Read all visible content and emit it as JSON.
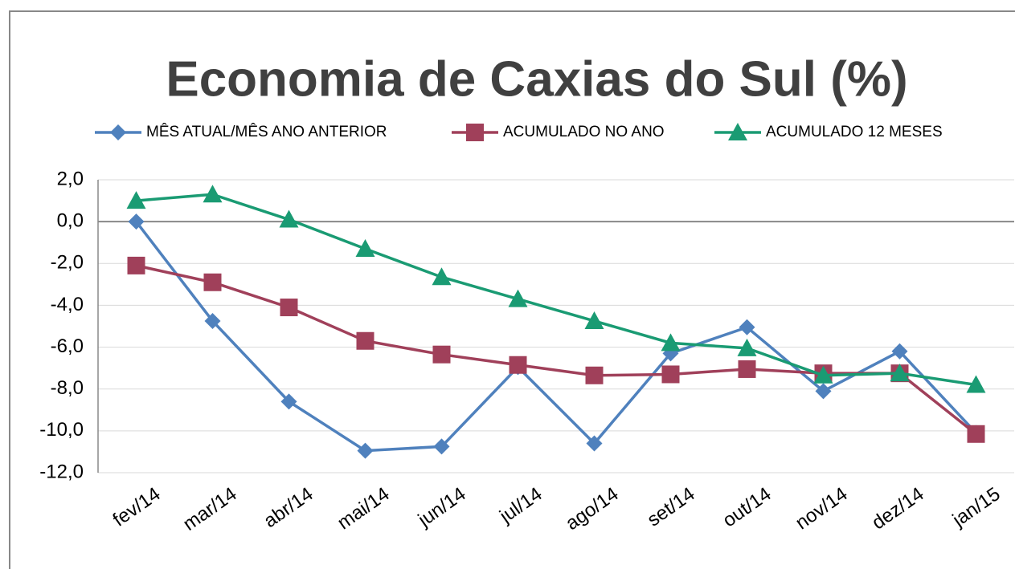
{
  "chart_data": {
    "type": "line",
    "title": "Economia de Caxias do Sul (%)",
    "categories": [
      "fev/14",
      "mar/14",
      "abr/14",
      "mai/14",
      "jun/14",
      "jul/14",
      "ago/14",
      "set/14",
      "out/14",
      "nov/14",
      "dez/14",
      "jan/15"
    ],
    "series": [
      {
        "name": "MÊS ATUAL/MÊS ANO ANTERIOR",
        "color": "#4f81bd",
        "marker": "diamond",
        "values": [
          0.0,
          -4.75,
          -8.6,
          -10.95,
          -10.75,
          -6.95,
          -10.6,
          -6.3,
          -5.05,
          -8.1,
          -6.2,
          -10.1
        ]
      },
      {
        "name": "ACUMULADO NO ANO",
        "color": "#a0405a",
        "marker": "square",
        "values": [
          -2.1,
          -2.9,
          -4.1,
          -5.7,
          -6.35,
          -6.85,
          -7.35,
          -7.3,
          -7.05,
          -7.25,
          -7.25,
          -10.15
        ]
      },
      {
        "name": "ACUMULADO 12 MESES",
        "color": "#1a9b73",
        "marker": "triangle",
        "values": [
          1.0,
          1.3,
          0.1,
          -1.3,
          -2.65,
          -3.7,
          -4.75,
          -5.8,
          -6.05,
          -7.35,
          -7.25,
          -7.8
        ]
      }
    ],
    "ylim": [
      -12,
      2
    ],
    "yticks": [
      {
        "value": 2,
        "label": "2,0"
      },
      {
        "value": 0,
        "label": "0,0"
      },
      {
        "value": -2,
        "label": "-2,0"
      },
      {
        "value": -4,
        "label": "-4,0"
      },
      {
        "value": -6,
        "label": "-6,0"
      },
      {
        "value": -8,
        "label": "-8,0"
      },
      {
        "value": -10,
        "label": "-10,0"
      },
      {
        "value": -12,
        "label": "-12,0"
      }
    ],
    "grid": true,
    "legend": "top"
  }
}
